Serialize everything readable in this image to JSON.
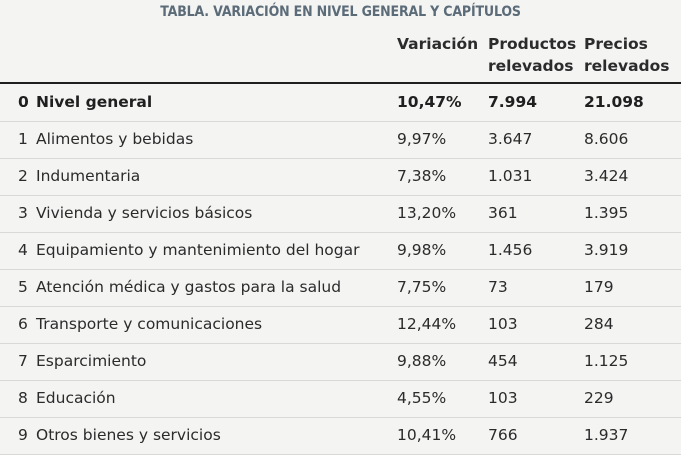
{
  "table": {
    "title": "TABLA. VARIACIÓN EN NIVEL GENERAL Y CAPÍTULOS",
    "headers": {
      "variacion": "Variación",
      "productos": "Productos\nrelevados",
      "precios": "Precios\nrelevados"
    },
    "rows": [
      {
        "num": "0",
        "name": "Nivel general",
        "variacion": "10,47%",
        "productos": "7.994",
        "precios": "21.098"
      },
      {
        "num": "1",
        "name": "Alimentos y bebidas",
        "variacion": "9,97%",
        "productos": "3.647",
        "precios": "8.606"
      },
      {
        "num": "2",
        "name": "Indumentaria",
        "variacion": "7,38%",
        "productos": "1.031",
        "precios": "3.424"
      },
      {
        "num": "3",
        "name": "Vivienda y servicios básicos",
        "variacion": "13,20%",
        "productos": "361",
        "precios": "1.395"
      },
      {
        "num": "4",
        "name": "Equipamiento y mantenimiento del hogar",
        "variacion": "9,98%",
        "productos": "1.456",
        "precios": "3.919"
      },
      {
        "num": "5",
        "name": "Atención médica y gastos para la salud",
        "variacion": "7,75%",
        "productos": "73",
        "precios": "179"
      },
      {
        "num": "6",
        "name": "Transporte y comunicaciones",
        "variacion": "12,44%",
        "productos": "103",
        "precios": "284"
      },
      {
        "num": "7",
        "name": "Esparcimiento",
        "variacion": "9,88%",
        "productos": "454",
        "precios": "1.125"
      },
      {
        "num": "8",
        "name": "Educación",
        "variacion": "4,55%",
        "productos": "103",
        "precios": "229"
      },
      {
        "num": "9",
        "name": "Otros bienes y servicios",
        "variacion": "10,41%",
        "productos": "766",
        "precios": "1.937"
      }
    ]
  }
}
